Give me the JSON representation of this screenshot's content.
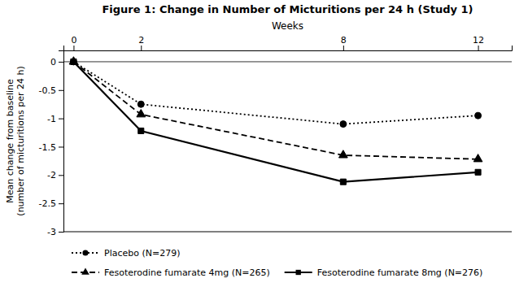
{
  "chart_data": {
    "type": "line",
    "title": "Figure 1: Change in Number of Micturitions per 24 h (Study 1)",
    "xlabel": "Weeks",
    "ylabel": "Mean change from baseline\n(number of micturitions per 24 h)",
    "x": [
      0,
      2,
      8,
      12
    ],
    "series": [
      {
        "name": "Placebo (N=279)",
        "color": "#000000",
        "line_style": "dotted",
        "marker": "circle",
        "values": [
          0,
          -0.75,
          -1.1,
          -0.95
        ]
      },
      {
        "name": "Fesoterodine fumarate 4mg (N=265)",
        "color": "#000000",
        "line_style": "dashed",
        "marker": "triangle",
        "values": [
          0,
          -0.93,
          -1.65,
          -1.72
        ]
      },
      {
        "name": "Fesoterodine fumarate 8mg (N=276)",
        "color": "#000000",
        "line_style": "solid",
        "marker": "square",
        "values": [
          0,
          -1.22,
          -2.12,
          -1.95
        ]
      }
    ],
    "xlim": [
      -0.3,
      13.0
    ],
    "ylim": [
      -3.0,
      0.2
    ],
    "xticks": [
      0,
      2,
      8,
      12
    ],
    "yticks": [
      0,
      -0.5,
      -1,
      -1.5,
      -2,
      -2.5,
      -3
    ],
    "grid": false,
    "legend": "bottom"
  }
}
